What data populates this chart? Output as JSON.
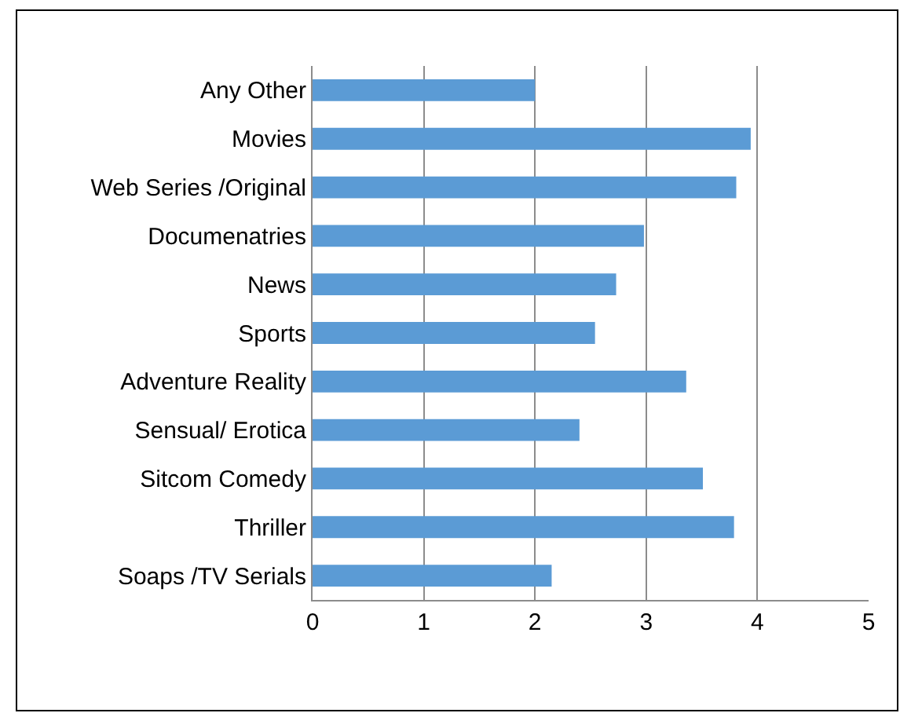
{
  "chart_data": {
    "type": "bar",
    "orientation": "horizontal",
    "categories": [
      "Any Other",
      "Movies",
      "Web Series /Original",
      "Documenatries",
      "News",
      "Sports",
      "Adventure Reality",
      "Sensual/ Erotica",
      "Sitcom Comedy",
      "Thriller",
      "Soaps /TV Serials"
    ],
    "values": [
      2.0,
      3.94,
      3.81,
      2.98,
      2.73,
      2.54,
      3.36,
      2.4,
      3.51,
      3.79,
      2.15
    ],
    "color": "#5b9bd5",
    "xlim": [
      0,
      5
    ],
    "xticks": [
      0,
      1,
      2,
      3,
      4,
      5
    ],
    "grid": "x"
  }
}
